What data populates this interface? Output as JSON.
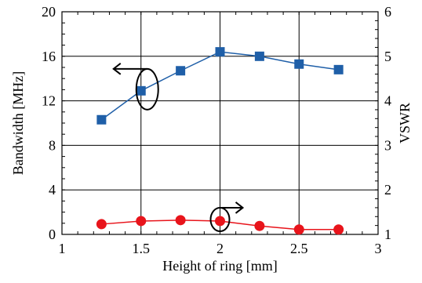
{
  "chart_data": {
    "type": "line",
    "xlabel": "Height of ring [mm]",
    "ylabel_left": "Bandwidth [MHz]",
    "ylabel_right": "VSWR",
    "xlim": [
      1,
      3
    ],
    "ylim_left": [
      0,
      20
    ],
    "ylim_right": [
      1,
      6
    ],
    "xticks": [
      1,
      1.5,
      2,
      2.5,
      3
    ],
    "xtick_labels": [
      "1",
      "1.5",
      "2",
      "2.5",
      "3"
    ],
    "yticks_left": [
      0,
      4,
      8,
      12,
      16,
      20
    ],
    "ytick_labels_left": [
      "0",
      "4",
      "8",
      "12",
      "16",
      "20"
    ],
    "yticks_right": [
      1,
      2,
      3,
      4,
      5,
      6
    ],
    "ytick_labels_right": [
      "1",
      "2",
      "3",
      "4",
      "5",
      "6"
    ],
    "grid": true,
    "series": [
      {
        "axis": "left",
        "marker": "square",
        "color": "#1f5fa8",
        "x": [
          1.25,
          1.5,
          1.75,
          2.0,
          2.25,
          2.5,
          2.75
        ],
        "y": [
          10.3,
          12.9,
          14.7,
          16.4,
          16.0,
          15.3,
          14.8
        ]
      },
      {
        "axis": "right",
        "marker": "circle",
        "color": "#e8141b",
        "x": [
          1.25,
          1.5,
          1.75,
          2.0,
          2.25,
          2.5,
          2.75
        ],
        "y": [
          1.23,
          1.3,
          1.32,
          1.3,
          1.19,
          1.11,
          1.11
        ]
      }
    ],
    "annotations": [
      {
        "type": "axis-indicator",
        "points_to": "left",
        "near_series": 0
      },
      {
        "type": "axis-indicator",
        "points_to": "right",
        "near_series": 1
      }
    ]
  }
}
